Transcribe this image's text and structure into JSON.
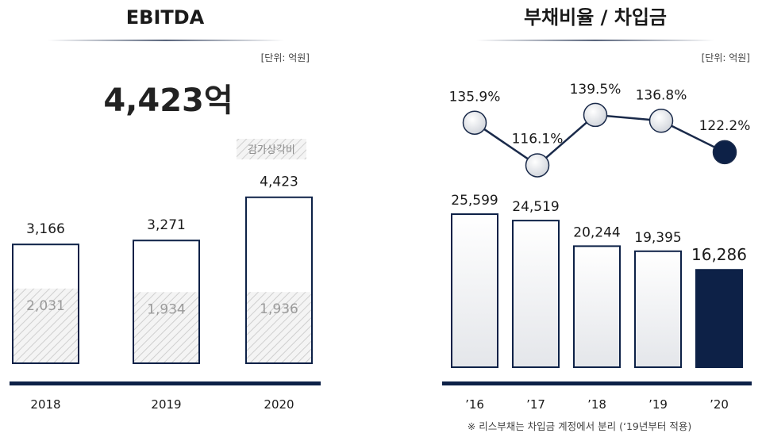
{
  "left_panel": {
    "title": "EBITDA",
    "unit": "[단위: 억원]",
    "headline": "4,423억",
    "legend_label": "감가상각비"
  },
  "right_panel": {
    "title": "부채비율 / 차입금",
    "unit": "[단위: 억원]",
    "footnote": "※ 리스부채는 차입금 계정에서 분리 (‘19년부터 적용)"
  },
  "colors": {
    "navy": "#0d2147",
    "bar_outline": "#0d2147",
    "hatch": "#d0d0d0",
    "depr_text": "#9a9a9a",
    "line": "#1a2a4a"
  },
  "chart_data": [
    {
      "type": "bar",
      "categories": [
        "2018",
        "2019",
        "2020"
      ],
      "series": [
        {
          "name": "EBITDA",
          "values": [
            3166,
            3271,
            4423
          ],
          "labels": [
            "3,166",
            "3,271",
            "4,423"
          ]
        },
        {
          "name": "감가상각비",
          "values": [
            2031,
            1934,
            1936
          ],
          "labels": [
            "2,031",
            "1,934",
            "1,936"
          ]
        }
      ],
      "ylim": [
        0,
        4700
      ]
    },
    {
      "type": "line",
      "categories": [
        "’16",
        "’17",
        "’18",
        "’19",
        "’20"
      ],
      "values": [
        135.9,
        116.1,
        139.5,
        136.8,
        122.2
      ],
      "labels": [
        "135.9%",
        "116.1%",
        "139.5%",
        "136.8%",
        "122.2%"
      ],
      "ylim": [
        110,
        145
      ]
    },
    {
      "type": "bar",
      "categories": [
        "’16",
        "’17",
        "’18",
        "’19",
        "’20"
      ],
      "values": [
        25599,
        24519,
        20244,
        19395,
        16286
      ],
      "labels": [
        "25,599",
        "24,519",
        "20,244",
        "19,395",
        "16,286"
      ],
      "ylim": [
        0,
        27500
      ]
    }
  ]
}
